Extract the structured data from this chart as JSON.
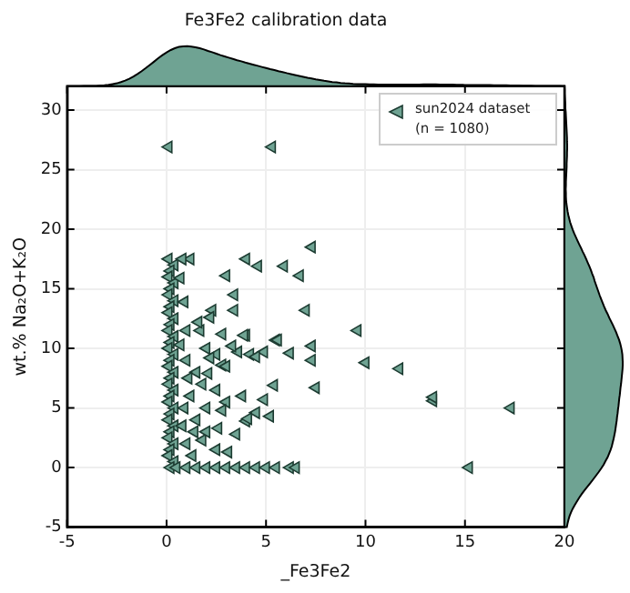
{
  "chart_data": {
    "type": "scatter",
    "title": "Fe3Fe2 calibration data",
    "xlabel": "_Fe3Fe2",
    "ylabel": "wt.% Na₂O+K₂O",
    "xlim": [
      -5,
      20
    ],
    "ylim": [
      -5,
      32
    ],
    "xticks": [
      -5,
      0,
      5,
      10,
      15,
      20
    ],
    "yticks": [
      -5,
      0,
      5,
      10,
      15,
      20,
      25,
      30
    ],
    "grid": true,
    "legend": "top right",
    "marker": "triangle",
    "series": [
      {
        "name": "sun2024 dataset (n = 1080)",
        "color": "#6fa393",
        "x": [
          0.1,
          0.4,
          0.2,
          0.1,
          0.4,
          0.2,
          0.1,
          0.4,
          0.2,
          0.1,
          0.4,
          0.2,
          0.1,
          0.4,
          0.2,
          0.1,
          0.4,
          0.2,
          0.1,
          0.4,
          0.2,
          0.1,
          0.4,
          0.2,
          0.1,
          0.4,
          0.2,
          0.1,
          0.4,
          0.2,
          0.1,
          0.4,
          0.2,
          0.1,
          0.4,
          0.2,
          0.5,
          1,
          1.5,
          2,
          2.5,
          3,
          3.5,
          4,
          4.5,
          5,
          5.5,
          6.2,
          6.5,
          15.2,
          0.1,
          5.3,
          1.2,
          0.8,
          4.0,
          4.6,
          5.9,
          7.3,
          3.0,
          6.7,
          3.4,
          0.7,
          3.4,
          2.3,
          7.0,
          2.2,
          9.6,
          1.0,
          1.7,
          2.8,
          4.0,
          3.9,
          5.5,
          5.6,
          7.3,
          3.6,
          4.2,
          4.9,
          7.3,
          10.0,
          11.7,
          2.8,
          5.4,
          7.5,
          13.4,
          13.4,
          17.3,
          1.8,
          3.8,
          4.9,
          4.5,
          4.0,
          4.1,
          2.6,
          3.1,
          1.8,
          1,
          1.5,
          2,
          2.5,
          3,
          1.2,
          2,
          2.5,
          3,
          1.5,
          2,
          1,
          2.5,
          1.3,
          0.8,
          0.9,
          1.1,
          3.3,
          2.2,
          4.5,
          1.6,
          0.9,
          6.2,
          5.2,
          3.5,
          2.8,
          0.7,
          1.4,
          2.1
        ],
        "values": [
          17.5,
          17.0,
          16.5,
          16.0,
          15.5,
          15.0,
          14.5,
          14.0,
          13.5,
          13.0,
          12.5,
          12.0,
          11.5,
          11.0,
          10.5,
          10.0,
          9.5,
          9.0,
          8.5,
          8.0,
          7.5,
          7.0,
          6.5,
          6.0,
          5.5,
          5.0,
          4.5,
          4.0,
          3.5,
          3.0,
          2.5,
          2.0,
          1.5,
          1.0,
          0.5,
          0,
          0,
          0,
          0,
          0,
          0,
          0,
          0,
          0,
          0,
          0,
          0,
          0,
          0,
          0,
          26.9,
          26.9,
          17.5,
          17.5,
          17.5,
          16.9,
          16.9,
          18.5,
          16.1,
          16.1,
          14.5,
          15.9,
          13.2,
          13.2,
          13.2,
          12.6,
          11.5,
          11.5,
          11.5,
          11.2,
          11.1,
          11.1,
          10.7,
          10.7,
          10.2,
          9.7,
          9.5,
          9.7,
          9.0,
          8.8,
          8.3,
          8.6,
          6.9,
          6.7,
          5.6,
          5.9,
          5.0,
          7.0,
          6.0,
          5.7,
          4.6,
          3.9,
          4.1,
          3.3,
          1.3,
          2.3,
          9,
          8,
          10,
          9.5,
          8.5,
          6,
          5,
          6.5,
          5.5,
          4,
          3,
          2,
          1.5,
          1,
          3.5,
          5,
          7.5,
          10.2,
          9.2,
          9.3,
          12.2,
          13.9,
          9.6,
          4.3,
          2.8,
          4.8,
          10.3,
          3,
          7.9
        ]
      }
    ]
  }
}
